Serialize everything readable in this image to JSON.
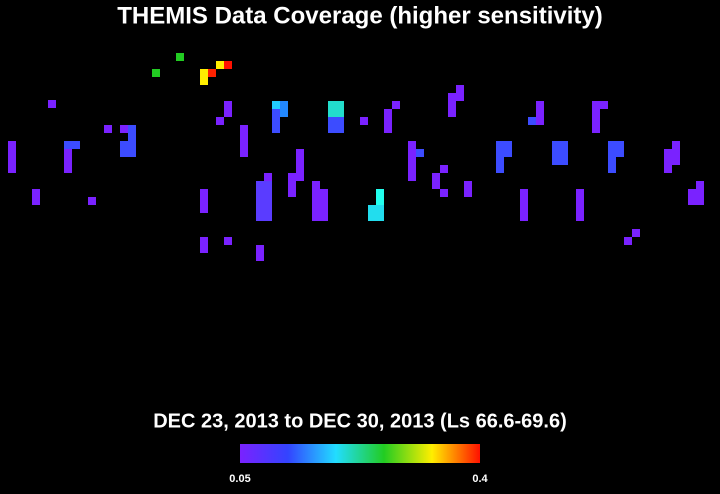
{
  "title": "THEMIS Data Coverage (higher sensitivity)",
  "subtitle": "DEC 23, 2013 to DEC 30, 2013 (Ls 66.6-69.6)",
  "colorbar": {
    "ticks": [
      0.05,
      0.4
    ]
  }
}
